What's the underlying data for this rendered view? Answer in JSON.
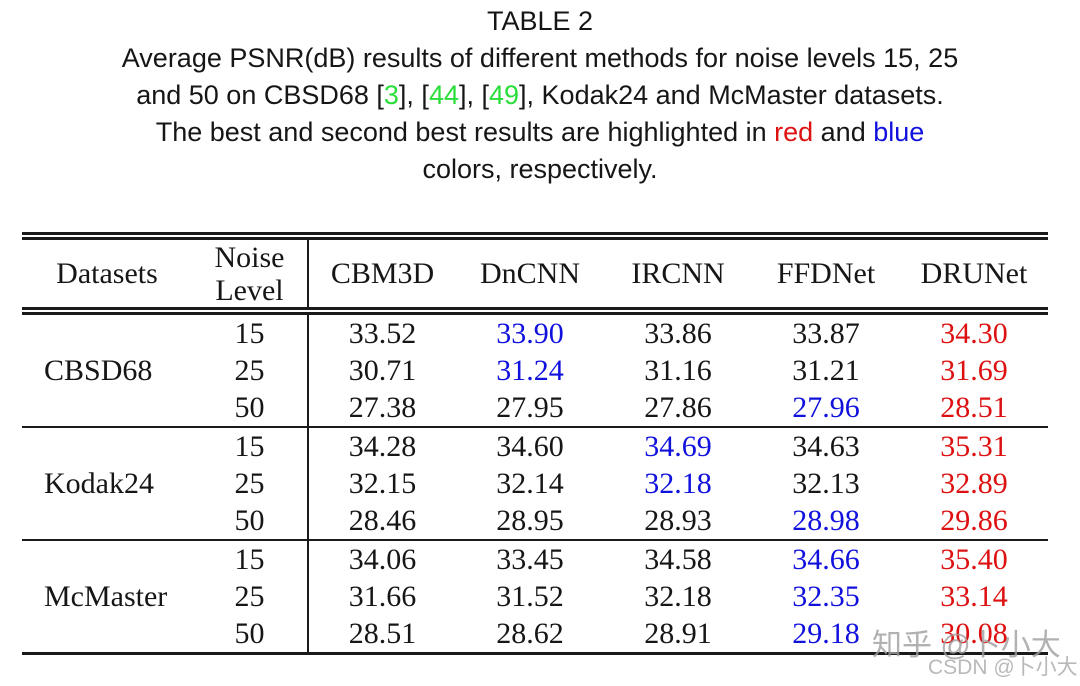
{
  "colors": {
    "text": "#161616",
    "best": "#dd1111",
    "second": "#1111dd",
    "citation": "#2ade3a",
    "watermark": "#9e9e9e"
  },
  "caption": {
    "title": "TABLE 2",
    "lines": [
      [
        {
          "t": "Average PSNR(dB) results of different methods for noise levels 15, 25"
        }
      ],
      [
        {
          "t": "and 50 on CBSD68 ["
        },
        {
          "t": "3",
          "c": "citation"
        },
        {
          "t": "], ["
        },
        {
          "t": "44",
          "c": "citation"
        },
        {
          "t": "], ["
        },
        {
          "t": "49",
          "c": "citation"
        },
        {
          "t": "], Kodak24 and McMaster datasets."
        }
      ],
      [
        {
          "t": "The best and second best results are highlighted in "
        },
        {
          "t": "red",
          "c": "best"
        },
        {
          "t": " and "
        },
        {
          "t": "blue",
          "c": "second"
        }
      ],
      [
        {
          "t": "colors, respectively."
        }
      ]
    ]
  },
  "table": {
    "header": {
      "datasets": "Datasets",
      "noise_line1": "Noise",
      "noise_line2": "Level",
      "methods": [
        "CBM3D",
        "DnCNN",
        "IRCNN",
        "FFDNet",
        "DRUNet"
      ]
    },
    "groups": [
      {
        "dataset": "CBSD68",
        "rows": [
          {
            "noise": "15",
            "values": [
              {
                "v": "33.52"
              },
              {
                "v": "33.90",
                "c": "second"
              },
              {
                "v": "33.86"
              },
              {
                "v": "33.87"
              },
              {
                "v": "34.30",
                "c": "best"
              }
            ]
          },
          {
            "noise": "25",
            "values": [
              {
                "v": "30.71"
              },
              {
                "v": "31.24",
                "c": "second"
              },
              {
                "v": "31.16"
              },
              {
                "v": "31.21"
              },
              {
                "v": "31.69",
                "c": "best"
              }
            ]
          },
          {
            "noise": "50",
            "values": [
              {
                "v": "27.38"
              },
              {
                "v": "27.95"
              },
              {
                "v": "27.86"
              },
              {
                "v": "27.96",
                "c": "second"
              },
              {
                "v": "28.51",
                "c": "best"
              }
            ]
          }
        ]
      },
      {
        "dataset": "Kodak24",
        "rows": [
          {
            "noise": "15",
            "values": [
              {
                "v": "34.28"
              },
              {
                "v": "34.60"
              },
              {
                "v": "34.69",
                "c": "second"
              },
              {
                "v": "34.63"
              },
              {
                "v": "35.31",
                "c": "best"
              }
            ]
          },
          {
            "noise": "25",
            "values": [
              {
                "v": "32.15"
              },
              {
                "v": "32.14"
              },
              {
                "v": "32.18",
                "c": "second"
              },
              {
                "v": "32.13"
              },
              {
                "v": "32.89",
                "c": "best"
              }
            ]
          },
          {
            "noise": "50",
            "values": [
              {
                "v": "28.46"
              },
              {
                "v": "28.95"
              },
              {
                "v": "28.93"
              },
              {
                "v": "28.98",
                "c": "second"
              },
              {
                "v": "29.86",
                "c": "best"
              }
            ]
          }
        ]
      },
      {
        "dataset": "McMaster",
        "rows": [
          {
            "noise": "15",
            "values": [
              {
                "v": "34.06"
              },
              {
                "v": "33.45"
              },
              {
                "v": "34.58"
              },
              {
                "v": "34.66",
                "c": "second"
              },
              {
                "v": "35.40",
                "c": "best"
              }
            ]
          },
          {
            "noise": "25",
            "values": [
              {
                "v": "31.66"
              },
              {
                "v": "31.52"
              },
              {
                "v": "32.18"
              },
              {
                "v": "32.35",
                "c": "second"
              },
              {
                "v": "33.14",
                "c": "best"
              }
            ]
          },
          {
            "noise": "50",
            "values": [
              {
                "v": "28.51"
              },
              {
                "v": "28.62"
              },
              {
                "v": "28.91"
              },
              {
                "v": "29.18",
                "c": "second"
              },
              {
                "v": "30.08",
                "c": "best"
              }
            ]
          }
        ]
      }
    ]
  },
  "watermarks": {
    "zhihu": "知乎 @卜小大",
    "csdn": "CSDN @卜小大"
  }
}
